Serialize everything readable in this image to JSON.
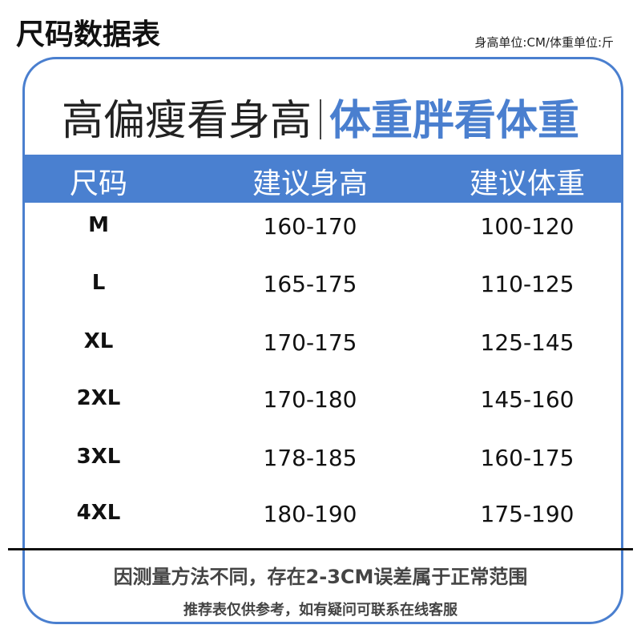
{
  "title": "尺码数据表",
  "unit_note": "身高单位:CM/体重单位:斤",
  "slogan": {
    "left": "高偏瘦看身高",
    "right": "体重胖看体重"
  },
  "table": {
    "headers": [
      "尺码",
      "建议身高",
      "建议体重"
    ],
    "rows": [
      [
        "M",
        "160-170",
        "100-120"
      ],
      [
        "L",
        "165-175",
        "110-125"
      ],
      [
        "XL",
        "170-175",
        "125-145"
      ],
      [
        "2XL",
        "170-180",
        "145-160"
      ],
      [
        "3XL",
        "178-185",
        "160-175"
      ],
      [
        "4XL",
        "180-190",
        "175-190"
      ]
    ]
  },
  "notes": {
    "measurement": "因测量方法不同，存在2-3CM误差属于正常范围",
    "reference": "推荐表仅供参考，如有疑问可联系在线客服"
  },
  "colors": {
    "accent": "#4a7fcf"
  }
}
